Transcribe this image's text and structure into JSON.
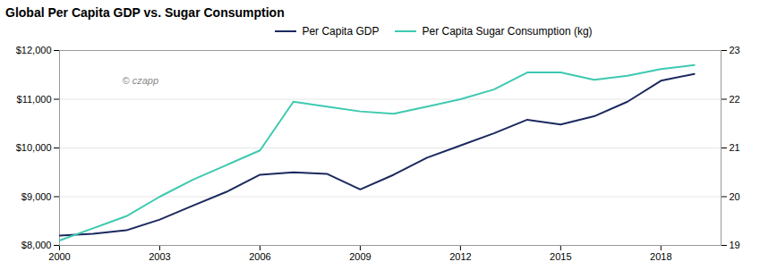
{
  "chart_data": {
    "type": "line",
    "title": "Global Per Capita GDP vs. Sugar Consumption",
    "x": [
      2000,
      2001,
      2002,
      2003,
      2004,
      2005,
      2006,
      2007,
      2008,
      2009,
      2010,
      2011,
      2012,
      2013,
      2014,
      2015,
      2016,
      2017,
      2018,
      2019
    ],
    "xlim": [
      2000,
      2019.8
    ],
    "xticks": [
      2000,
      2003,
      2006,
      2009,
      2012,
      2015,
      2018
    ],
    "ylim": [
      8000,
      12000
    ],
    "yticks": [
      {
        "value": 8000,
        "label": "$8,000"
      },
      {
        "value": 9000,
        "label": "$9,000"
      },
      {
        "value": 10000,
        "label": "$10,000"
      },
      {
        "value": 11000,
        "label": "$11,000"
      },
      {
        "value": 12000,
        "label": "$12,000"
      }
    ],
    "y2lim": [
      19,
      23
    ],
    "y2ticks": [
      19,
      20,
      21,
      22,
      23
    ],
    "grid": true,
    "legend": "top",
    "annotations": [
      "© czapp"
    ],
    "series": [
      {
        "name": "Per Capita GDP",
        "color": "#1b2a5e",
        "values": [
          8200,
          8240,
          8310,
          8530,
          8820,
          9100,
          9450,
          9500,
          9470,
          9150,
          9450,
          9800,
          10050,
          10300,
          10580,
          10480,
          10650,
          10950,
          11380,
          11520
        ]
      },
      {
        "name": "Per Capita Sugar Consumption (kg)",
        "color": "#3ec9b0",
        "axis": "y2",
        "values": [
          19.1,
          19.35,
          19.6,
          20.0,
          20.35,
          20.65,
          20.95,
          21.95,
          21.85,
          21.75,
          21.7,
          21.85,
          22.0,
          22.2,
          22.55,
          22.55,
          22.4,
          22.48,
          22.62,
          22.7
        ]
      }
    ]
  }
}
